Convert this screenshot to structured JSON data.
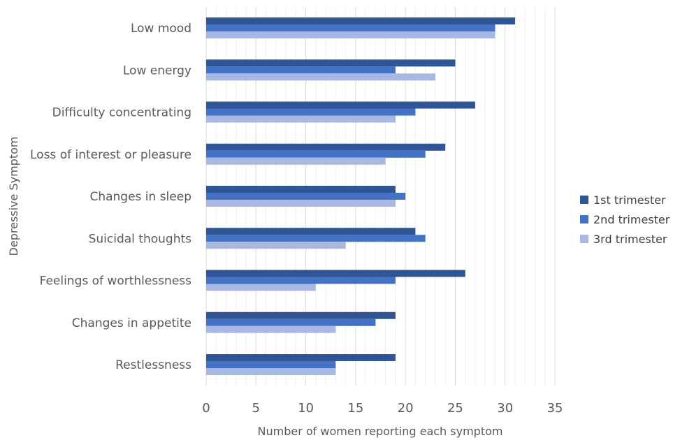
{
  "chart_data": {
    "type": "bar",
    "orientation": "horizontal",
    "title": "",
    "xlabel": "Number of women reporting each symptom",
    "ylabel": "Depressive Symptom",
    "xlim": [
      0,
      35
    ],
    "x_ticks": [
      0,
      5,
      10,
      15,
      20,
      25,
      30,
      35
    ],
    "grid": true,
    "legend_position": "right",
    "categories": [
      "Low mood",
      "Low energy",
      "Difficulty concentrating",
      "Loss of interest or pleasure",
      "Changes in sleep",
      "Suicidal thoughts",
      "Feelings of worthlessness",
      "Changes in appetite",
      "Restlessness"
    ],
    "series": [
      {
        "name": "1st trimester",
        "color": "#2f5597",
        "values": [
          31,
          25,
          27,
          24,
          19,
          21,
          26,
          19,
          19
        ]
      },
      {
        "name": "2nd trimester",
        "color": "#4472c4",
        "values": [
          29,
          19,
          21,
          22,
          20,
          22,
          19,
          17,
          13
        ]
      },
      {
        "name": "3rd trimester",
        "color": "#a9b8e0",
        "values": [
          29,
          23,
          19,
          18,
          19,
          14,
          11,
          13,
          13
        ]
      }
    ]
  }
}
